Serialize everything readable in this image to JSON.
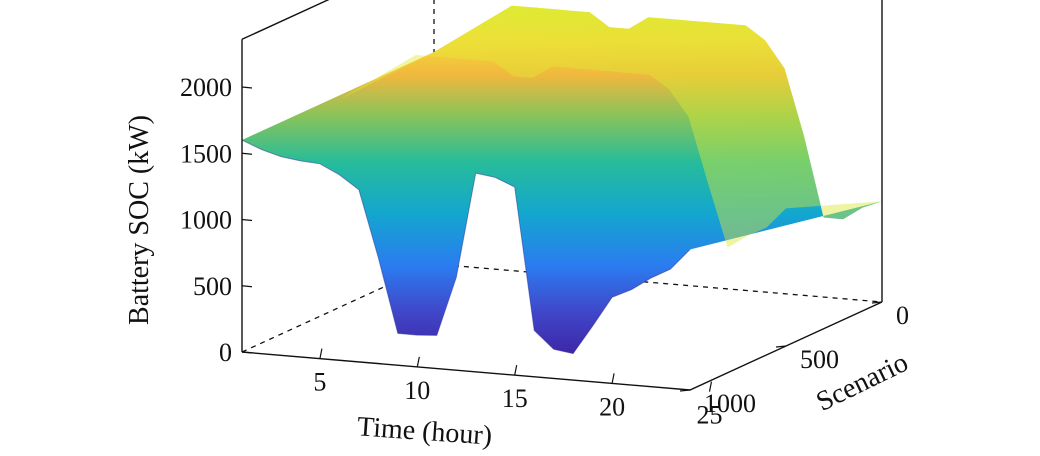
{
  "chart_data": {
    "type": "surface",
    "title": "",
    "xlabel": "Time (hour)",
    "ylabel": "Scenario",
    "zlabel": "Battery SOC (kW)",
    "xlim": [
      1,
      24
    ],
    "ylim": [
      0,
      1000
    ],
    "zlim": [
      0,
      2000
    ],
    "xticks": [
      "5",
      "10",
      "15",
      "20",
      "25"
    ],
    "yticks": [
      "0",
      "500",
      "1000"
    ],
    "zticks": [
      "0",
      "500",
      "1000",
      "1500",
      "2000"
    ],
    "colormap": "parula",
    "grid": false,
    "legend": "none",
    "soc_profile": {
      "x": [
        1,
        2,
        3,
        4,
        5,
        6,
        7,
        8,
        9,
        10,
        11,
        12,
        13,
        14,
        15,
        16,
        17,
        18,
        19,
        20,
        21,
        22,
        23,
        24
      ],
      "front_edge": [
        1600,
        1540,
        1500,
        1480,
        1470,
        1400,
        1300,
        800,
        240,
        240,
        250,
        700,
        1500,
        1480,
        1420,
        350,
        220,
        200,
        420,
        650,
        720,
        820,
        900,
        1060
      ],
      "back_edge": [
        1600,
        1700,
        1800,
        1900,
        2000,
        2000,
        2000,
        2000,
        2000,
        1900,
        1900,
        2000,
        2000,
        2000,
        2000,
        2000,
        2000,
        1900,
        1700,
        1200,
        600,
        600,
        700,
        760
      ]
    }
  }
}
